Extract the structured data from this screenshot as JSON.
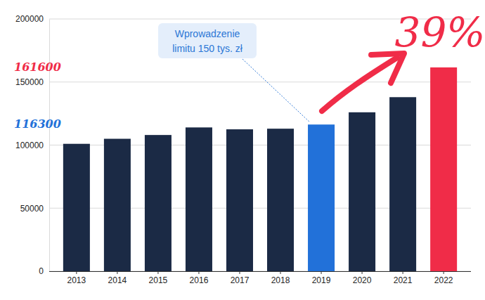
{
  "chart_data": {
    "type": "bar",
    "categories": [
      "2013",
      "2014",
      "2015",
      "2016",
      "2017",
      "2018",
      "2019",
      "2020",
      "2021",
      "2022"
    ],
    "values": [
      101000,
      105000,
      108000,
      114000,
      112500,
      113000,
      116300,
      126000,
      138000,
      161600
    ],
    "colors": [
      "#1b2a45",
      "#1b2a45",
      "#1b2a45",
      "#1b2a45",
      "#1b2a45",
      "#1b2a45",
      "#2271d9",
      "#1b2a45",
      "#1b2a45",
      "#f02c48"
    ],
    "ylim": [
      0,
      200000
    ],
    "yticks": [
      0,
      50000,
      100000,
      150000,
      200000
    ],
    "grid": true,
    "annotations": [
      {
        "text": [
          "Wprowadzenie",
          "limitu 150 tys. zł"
        ],
        "category": "2019"
      },
      {
        "text": "116300",
        "category": "2019"
      },
      {
        "text": "161600",
        "category": "2022"
      },
      {
        "text": "39%",
        "category": "2022"
      }
    ]
  }
}
